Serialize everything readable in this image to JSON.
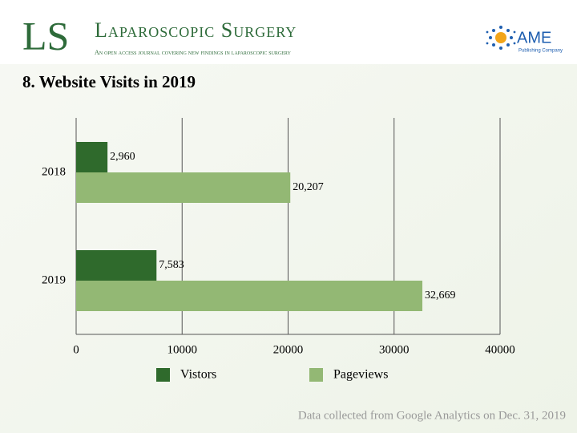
{
  "header": {
    "logo_initials": "LS",
    "journal": "Laparoscopic Surgery",
    "tagline": "An open access journal covering new findings in laparoscopic surgery",
    "publisher": "AME",
    "publisher_sub": "Publishing Company"
  },
  "chart_data": {
    "type": "hbar",
    "title": "8. Website Visits in 2019",
    "categories": [
      "2018",
      "2019"
    ],
    "series": [
      {
        "name": "Vistors",
        "color": "#2f6a2c",
        "values": [
          2960,
          7583
        ],
        "value_labels": [
          "2,960",
          "7,583"
        ]
      },
      {
        "name": "Pageviews",
        "color": "#93b874",
        "values": [
          20207,
          32669
        ],
        "value_labels": [
          "20,207",
          "32,669"
        ]
      }
    ],
    "xlim": [
      0,
      40000
    ],
    "xticks": [
      0,
      10000,
      20000,
      30000,
      40000
    ],
    "grid": true
  },
  "footnote": "Data collected from Google Analytics on Dec. 31, 2019"
}
